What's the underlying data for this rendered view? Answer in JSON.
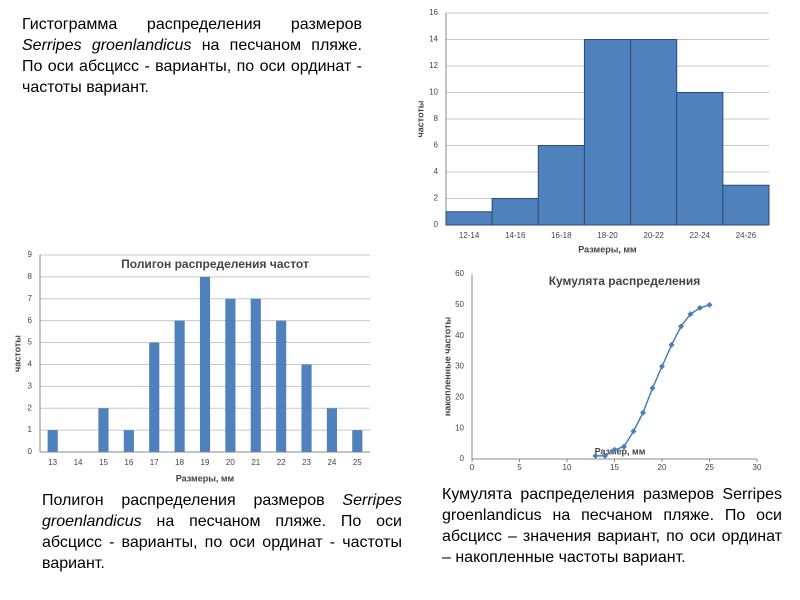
{
  "chart_data": [
    {
      "type": "bar",
      "categories": [
        "12-14",
        "14-16",
        "16-18",
        "18-20",
        "20-22",
        "22-24",
        "24-26"
      ],
      "values": [
        1,
        2,
        6,
        14,
        14,
        10,
        3
      ],
      "color": "#4f81bd",
      "ylim": [
        0,
        16
      ],
      "yticks": [
        0,
        2,
        4,
        6,
        8,
        10,
        12,
        14,
        16
      ],
      "grid": true,
      "xlabel": "Размеры, мм",
      "ylabel": "частоты"
    },
    {
      "type": "bar",
      "title": "Полигон распределения частот",
      "categories": [
        "13",
        "14",
        "15",
        "16",
        "17",
        "18",
        "19",
        "20",
        "21",
        "22",
        "23",
        "24",
        "25"
      ],
      "values": [
        1,
        0,
        2,
        1,
        5,
        6,
        8,
        7,
        7,
        6,
        4,
        2,
        1
      ],
      "color": "#4f81bd",
      "ylim": [
        0,
        9
      ],
      "yticks": [
        0,
        1,
        2,
        3,
        4,
        5,
        6,
        7,
        8,
        9
      ],
      "grid": true,
      "xlabel": "Размеры, мм",
      "ylabel": "частоты"
    },
    {
      "type": "line",
      "title": "Кумулята распределения",
      "x": [
        13,
        14,
        15,
        16,
        17,
        18,
        19,
        20,
        21,
        22,
        23,
        24,
        25
      ],
      "values": [
        1,
        1,
        3,
        4,
        9,
        15,
        23,
        30,
        37,
        43,
        47,
        49,
        50
      ],
      "color": "#4a7ebb",
      "xlim": [
        0,
        30
      ],
      "xticks": [
        0,
        5,
        10,
        15,
        20,
        25,
        30
      ],
      "ylim": [
        0,
        60
      ],
      "yticks": [
        0,
        10,
        20,
        30,
        40,
        50,
        60
      ],
      "grid": false,
      "xlabel": "Размер, мм",
      "ylabel": "накопленные частоты"
    }
  ],
  "captions": [
    [
      {
        "text": "Гистограмма распределения размеров ",
        "italic": false
      },
      {
        "text": "Serripes groenlandicus",
        "italic": true
      },
      {
        "text": " на песчаном пляже. По оси абсцисс - варианты, по оси ординат  - частоты вариант.",
        "italic": false
      }
    ],
    [
      {
        "text": "Полигон распределения размеров ",
        "italic": false
      },
      {
        "text": "Serripes groenlandicus",
        "italic": true
      },
      {
        "text": " на песчаном пляже. По оси абсцисс - варианты, по оси ординат - частоты вариант.",
        "italic": false
      }
    ],
    [
      {
        "text": "Кумулята распределения размеров Serripes groenlandicus на песчаном пляже. По оси абсцисс – значения вариант, по оси ординат – накопленные частоты вариант.",
        "italic": false
      }
    ]
  ]
}
